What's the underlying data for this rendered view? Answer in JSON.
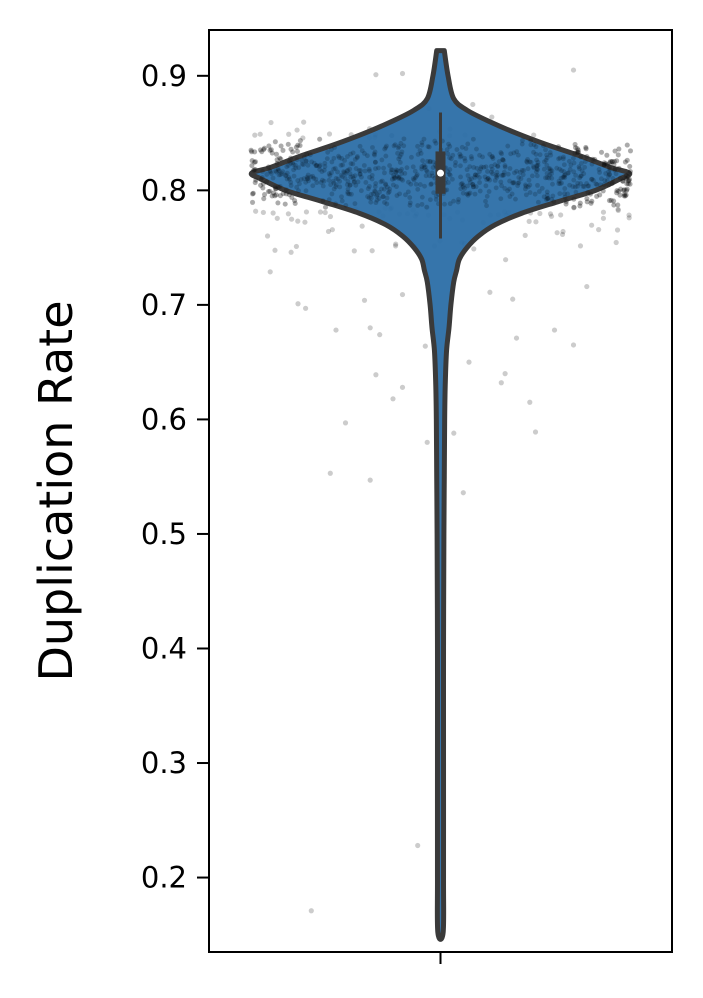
{
  "chart_data": {
    "type": "violin",
    "title": "",
    "xlabel": "",
    "ylabel": "Duplication Rate",
    "ylim": [
      0.135,
      0.94
    ],
    "yticks": [
      0.2,
      0.3,
      0.4,
      0.5,
      0.6,
      0.7,
      0.8,
      0.9
    ],
    "ytick_labels": [
      "0.2",
      "0.3",
      "0.4",
      "0.5",
      "0.6",
      "0.7",
      "0.8",
      "0.9"
    ],
    "grid": false,
    "colors": {
      "violin_fill": "#2b6ea6",
      "violin_edge": "#3a3a3a",
      "points": "#000000"
    },
    "violin": {
      "median": 0.815,
      "q1": 0.797,
      "q3": 0.834,
      "whisker_low": 0.758,
      "whisker_high": 0.868,
      "min": 0.152,
      "max": 0.922,
      "density_profile": [
        [
          0.922,
          0.02
        ],
        [
          0.9,
          0.04
        ],
        [
          0.88,
          0.07
        ],
        [
          0.87,
          0.14
        ],
        [
          0.86,
          0.26
        ],
        [
          0.85,
          0.4
        ],
        [
          0.84,
          0.56
        ],
        [
          0.83,
          0.74
        ],
        [
          0.82,
          0.9
        ],
        [
          0.815,
          1.0
        ],
        [
          0.81,
          0.95
        ],
        [
          0.8,
          0.82
        ],
        [
          0.79,
          0.62
        ],
        [
          0.78,
          0.43
        ],
        [
          0.77,
          0.29
        ],
        [
          0.76,
          0.2
        ],
        [
          0.75,
          0.14
        ],
        [
          0.74,
          0.1
        ],
        [
          0.73,
          0.085
        ],
        [
          0.72,
          0.07
        ],
        [
          0.7,
          0.055
        ],
        [
          0.68,
          0.045
        ],
        [
          0.66,
          0.032
        ],
        [
          0.63,
          0.025
        ],
        [
          0.6,
          0.022
        ],
        [
          0.55,
          0.02
        ],
        [
          0.5,
          0.018
        ],
        [
          0.4,
          0.016
        ],
        [
          0.3,
          0.016
        ],
        [
          0.2,
          0.016
        ],
        [
          0.152,
          0.014
        ]
      ]
    },
    "outlier_points": [
      [
        -0.68,
        0.171
      ],
      [
        -0.12,
        0.228
      ],
      [
        -0.58,
        0.553
      ],
      [
        -0.37,
        0.547
      ],
      [
        0.12,
        0.536
      ],
      [
        -0.5,
        0.597
      ],
      [
        -0.25,
        0.618
      ],
      [
        -0.2,
        0.628
      ],
      [
        -0.07,
        0.58
      ],
      [
        0.07,
        0.588
      ],
      [
        0.5,
        0.589
      ],
      [
        0.47,
        0.615
      ],
      [
        -0.34,
        0.639
      ],
      [
        0.32,
        0.632
      ],
      [
        0.34,
        0.64
      ],
      [
        -0.55,
        0.678
      ],
      [
        -0.37,
        0.68
      ],
      [
        -0.32,
        0.674
      ],
      [
        -0.08,
        0.664
      ],
      [
        0.15,
        0.65
      ],
      [
        0.4,
        0.671
      ],
      [
        0.7,
        0.665
      ],
      [
        0.6,
        0.678
      ],
      [
        -0.75,
        0.701
      ],
      [
        -0.71,
        0.697
      ],
      [
        -0.4,
        0.704
      ],
      [
        -0.2,
        0.709
      ],
      [
        0.26,
        0.711
      ],
      [
        0.38,
        0.705
      ],
      [
        0.77,
        0.716
      ],
      [
        -0.2,
        0.902
      ],
      [
        -0.34,
        0.901
      ],
      [
        0.7,
        0.905
      ],
      [
        0.17,
        0.875
      ],
      [
        0.27,
        0.864
      ]
    ]
  }
}
